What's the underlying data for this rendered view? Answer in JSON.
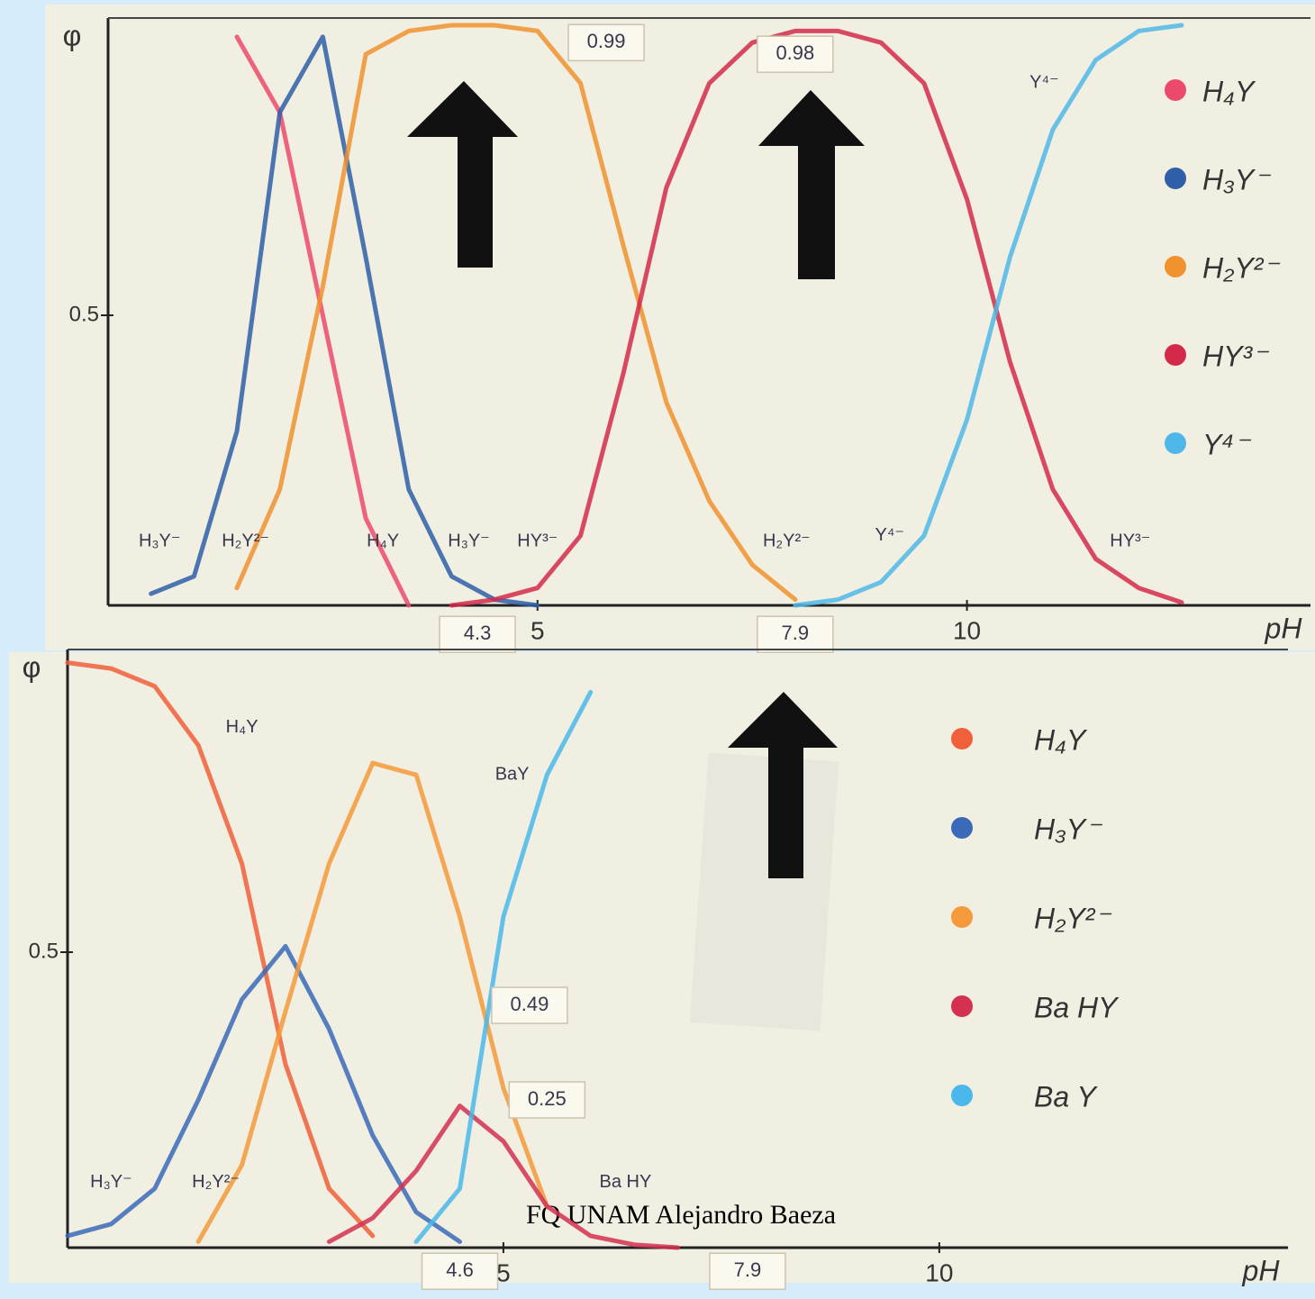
{
  "chart_data": [
    {
      "type": "line",
      "y_label": "φ",
      "x_label": "pH",
      "x": [
        0.5,
        1,
        1.5,
        2,
        2.5,
        3,
        3.5,
        4,
        4.5,
        5,
        5.5,
        6,
        6.5,
        7,
        7.5,
        8,
        8.5,
        9,
        9.5,
        10,
        10.5,
        11,
        11.5,
        12,
        12.5
      ],
      "series": [
        {
          "name": "H₄Y",
          "color": "#ec4a6c",
          "values": [
            null,
            null,
            0.98,
            0.85,
            0.5,
            0.15,
            0.0,
            null,
            null,
            null,
            null,
            null,
            null,
            null,
            null,
            null,
            null,
            null,
            null,
            null,
            null,
            null,
            null,
            null,
            null
          ]
        },
        {
          "name": "H₃Y⁻",
          "color": "#2e5fa8",
          "values": [
            0.02,
            0.05,
            0.3,
            0.85,
            0.98,
            0.6,
            0.2,
            0.05,
            0.01,
            0.0,
            null,
            null,
            null,
            null,
            null,
            null,
            null,
            null,
            null,
            null,
            null,
            null,
            null,
            null,
            null
          ]
        },
        {
          "name": "H₂Y²⁻",
          "color": "#f0922e",
          "values": [
            null,
            null,
            0.03,
            0.2,
            0.55,
            0.95,
            0.99,
            1.0,
            1.0,
            0.99,
            0.9,
            0.62,
            0.35,
            0.18,
            0.07,
            0.01,
            null,
            null,
            null,
            null,
            null,
            null,
            null,
            null,
            null
          ]
        },
        {
          "name": "HY³⁻",
          "color": "#d42a4a",
          "values": [
            null,
            null,
            null,
            null,
            null,
            null,
            null,
            0.0,
            0.01,
            0.03,
            0.12,
            0.4,
            0.72,
            0.9,
            0.97,
            0.99,
            0.99,
            0.97,
            0.9,
            0.7,
            0.42,
            0.2,
            0.08,
            0.03,
            0.005
          ]
        },
        {
          "name": "Y⁴⁻",
          "color": "#4fb8e8",
          "values": [
            null,
            null,
            null,
            null,
            null,
            null,
            null,
            null,
            null,
            null,
            null,
            null,
            null,
            null,
            null,
            0.0,
            0.01,
            0.04,
            0.12,
            0.32,
            0.6,
            0.82,
            0.94,
            0.99,
            1.0
          ]
        }
      ],
      "xlim": [
        0,
        14
      ],
      "ylim": [
        0,
        1
      ],
      "xticks": [
        5,
        10
      ],
      "yticks": [
        0.5
      ],
      "legend": "right",
      "annotations": [
        {
          "text": "0.99",
          "x": 5.8,
          "y": 0.97,
          "boxed": true
        },
        {
          "text": "0.98",
          "x": 8.0,
          "y": 0.95,
          "boxed": true
        },
        {
          "text": "4.3",
          "x": 4.3,
          "y": -0.05,
          "boxed": true
        },
        {
          "text": "7.9",
          "x": 8.0,
          "y": -0.05,
          "boxed": true
        },
        {
          "text": "H₃Y⁻",
          "x": 0.6,
          "y": 0.11
        },
        {
          "text": "H₂Y²⁻",
          "x": 1.6,
          "y": 0.11
        },
        {
          "text": "H₄Y",
          "x": 3.2,
          "y": 0.11
        },
        {
          "text": "H₃Y⁻",
          "x": 4.2,
          "y": 0.11
        },
        {
          "text": "HY³⁻",
          "x": 5.0,
          "y": 0.11
        },
        {
          "text": "H₂Y²⁻",
          "x": 7.9,
          "y": 0.11
        },
        {
          "text": "Y⁴⁻",
          "x": 9.1,
          "y": 0.12
        },
        {
          "text": "HY³⁻",
          "x": 11.9,
          "y": 0.11
        },
        {
          "text": "Y⁴⁻",
          "x": 10.9,
          "y": 0.9
        }
      ]
    },
    {
      "type": "line",
      "y_label": "φ",
      "x_label": "pH",
      "x": [
        0,
        0.5,
        1,
        1.5,
        2,
        2.5,
        3,
        3.5,
        4,
        4.5,
        5,
        5.5,
        6,
        6.5,
        7
      ],
      "series": [
        {
          "name": "H₄Y",
          "color": "#f0603a",
          "values": [
            0.99,
            0.98,
            0.95,
            0.85,
            0.65,
            0.31,
            0.1,
            0.02,
            null,
            null,
            null,
            null,
            null,
            null,
            null
          ]
        },
        {
          "name": "H₃Y⁻",
          "color": "#3a6ab8",
          "values": [
            0.02,
            0.04,
            0.1,
            0.25,
            0.42,
            0.51,
            0.37,
            0.19,
            0.06,
            0.01,
            null,
            null,
            null,
            null,
            null
          ]
        },
        {
          "name": "H₂Y²⁻",
          "color": "#f59a3a",
          "values": [
            null,
            null,
            null,
            0.01,
            0.14,
            0.4,
            0.65,
            0.82,
            0.8,
            0.56,
            0.27,
            0.07,
            null,
            null,
            null
          ]
        },
        {
          "name": "Ba HY",
          "color": "#d43050",
          "values": [
            null,
            null,
            null,
            null,
            null,
            null,
            0.01,
            0.05,
            0.13,
            0.24,
            0.18,
            0.07,
            0.02,
            0.005,
            0.0
          ]
        },
        {
          "name": "Ba Y",
          "color": "#4ab8ea",
          "values": [
            null,
            null,
            null,
            null,
            null,
            null,
            null,
            null,
            0.01,
            0.1,
            0.56,
            0.8,
            0.94,
            null,
            null
          ]
        }
      ],
      "xlim": [
        0,
        14
      ],
      "ylim": [
        0,
        1
      ],
      "xticks": [
        5,
        10
      ],
      "yticks": [
        0.5
      ],
      "legend": "right",
      "annotations": [
        {
          "text": "0.49",
          "x": 5.3,
          "y": 0.41,
          "boxed": true
        },
        {
          "text": "0.25",
          "x": 5.5,
          "y": 0.25,
          "boxed": true
        },
        {
          "text": "4.6",
          "x": 4.5,
          "y": -0.04,
          "boxed": true
        },
        {
          "text": "7.9",
          "x": 7.8,
          "y": -0.04,
          "boxed": true
        },
        {
          "text": "H₄Y",
          "x": 2.0,
          "y": 0.88
        },
        {
          "text": "BaY",
          "x": 5.1,
          "y": 0.8
        },
        {
          "text": "H₃Y⁻",
          "x": 0.5,
          "y": 0.11
        },
        {
          "text": "H₂Y²⁻",
          "x": 1.7,
          "y": 0.11
        },
        {
          "text": "Ba HY",
          "x": 6.4,
          "y": 0.11
        }
      ]
    }
  ],
  "footer": "FQ UNAM Alejandro Baeza"
}
